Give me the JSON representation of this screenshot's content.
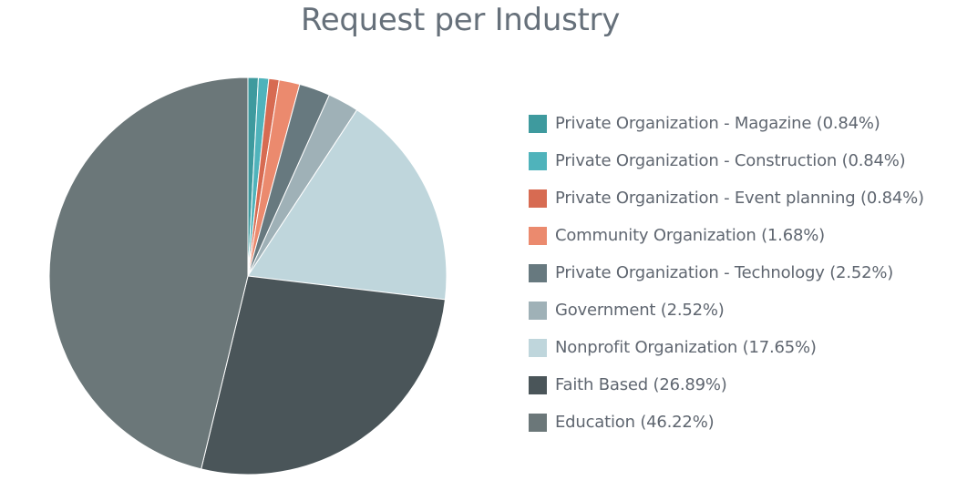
{
  "chart_data": {
    "type": "pie",
    "title": "Request per Industry",
    "start": "top",
    "direction": "clockwise",
    "legend_position": "right",
    "slices": [
      {
        "label": "Private Organization - Magazine",
        "display": "Private Organization - Magazine (0.84%)",
        "value": 0.84,
        "color": "#3e9a9e"
      },
      {
        "label": "Private Organization - Construction",
        "display": "Private Organization - Construction (0.84%)",
        "value": 0.84,
        "color": "#4fb3bb"
      },
      {
        "label": "Private Organization - Event planning",
        "display": "Private Organization - Event planning (0.84%)",
        "value": 0.84,
        "color": "#d76b52"
      },
      {
        "label": "Community Organization",
        "display": "Community Organization (1.68%)",
        "value": 1.68,
        "color": "#eb8a6e"
      },
      {
        "label": "Private Organization - Technology",
        "display": "Private Organization - Technology (2.52%)",
        "value": 2.52,
        "color": "#67797f"
      },
      {
        "label": "Government",
        "display": "Government (2.52%)",
        "value": 2.52,
        "color": "#9fb1b7"
      },
      {
        "label": "Nonprofit Organization",
        "display": "Nonprofit Organization (17.65%)",
        "value": 17.65,
        "color": "#bfd6dc"
      },
      {
        "label": "Faith Based",
        "display": "Faith Based (26.89%)",
        "value": 26.89,
        "color": "#4a5559"
      },
      {
        "label": "Education",
        "display": "Education (46.22%)",
        "value": 46.22,
        "color": "#6b7779"
      }
    ]
  }
}
